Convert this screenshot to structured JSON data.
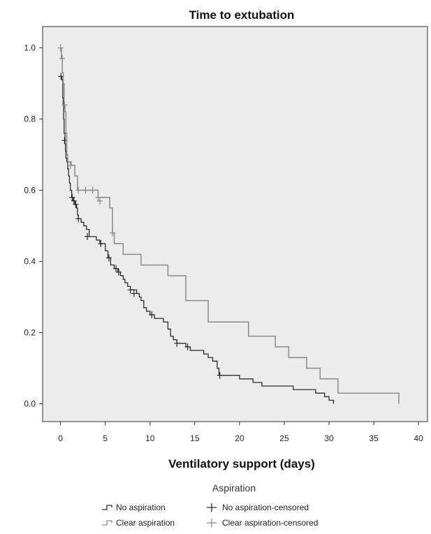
{
  "chart_data": {
    "type": "line",
    "title": "Time to extubation",
    "xlabel": "Ventilatory support (days)",
    "ylabel": "",
    "xlim": [
      -2,
      41
    ],
    "ylim": [
      -0.05,
      1.06
    ],
    "x_ticks": [
      0,
      5,
      10,
      15,
      20,
      25,
      30,
      35,
      40
    ],
    "y_ticks": [
      0.0,
      0.2,
      0.4,
      0.6,
      0.8,
      1.0
    ],
    "x_tick_labels": [
      "0",
      "5",
      "10",
      "15",
      "20",
      "25",
      "30",
      "35",
      "40"
    ],
    "y_tick_labels": [
      "0.0",
      "0.2",
      "0.4",
      "0.6",
      "0.8",
      "1.0"
    ],
    "grid": false,
    "plot_background": "#ececec",
    "legend": {
      "title": "Aspiration",
      "placement": "bottom",
      "entries": [
        "No aspiration",
        "No aspiration-censored",
        "Clear aspiration",
        "Clear aspiration-censored"
      ]
    },
    "series": [
      {
        "name": "No aspiration",
        "color": "#2b2b2b",
        "steps": [
          [
            0,
            0.92
          ],
          [
            0.15,
            0.91
          ],
          [
            0.25,
            0.86
          ],
          [
            0.3,
            0.84
          ],
          [
            0.35,
            0.8
          ],
          [
            0.4,
            0.76
          ],
          [
            0.5,
            0.73
          ],
          [
            0.55,
            0.71
          ],
          [
            0.6,
            0.69
          ],
          [
            0.7,
            0.68
          ],
          [
            0.8,
            0.66
          ],
          [
            0.9,
            0.64
          ],
          [
            1.0,
            0.62
          ],
          [
            1.1,
            0.6
          ],
          [
            1.25,
            0.58
          ],
          [
            1.4,
            0.57
          ],
          [
            1.6,
            0.56
          ],
          [
            1.8,
            0.55
          ],
          [
            1.9,
            0.53
          ],
          [
            2.0,
            0.52
          ],
          [
            2.3,
            0.51
          ],
          [
            2.6,
            0.5
          ],
          [
            2.9,
            0.49
          ],
          [
            3.2,
            0.47
          ],
          [
            4.0,
            0.46
          ],
          [
            4.4,
            0.45
          ],
          [
            5.0,
            0.43
          ],
          [
            5.3,
            0.41
          ],
          [
            5.6,
            0.39
          ],
          [
            6.0,
            0.38
          ],
          [
            6.4,
            0.37
          ],
          [
            6.7,
            0.36
          ],
          [
            7.0,
            0.35
          ],
          [
            7.2,
            0.34
          ],
          [
            7.5,
            0.33
          ],
          [
            7.8,
            0.32
          ],
          [
            8.5,
            0.31
          ],
          [
            8.8,
            0.3
          ],
          [
            9.0,
            0.29
          ],
          [
            9.3,
            0.27
          ],
          [
            9.6,
            0.26
          ],
          [
            10.0,
            0.25
          ],
          [
            10.5,
            0.24
          ],
          [
            11.5,
            0.23
          ],
          [
            12.0,
            0.21
          ],
          [
            12.3,
            0.19
          ],
          [
            12.6,
            0.18
          ],
          [
            13.0,
            0.17
          ],
          [
            14.0,
            0.16
          ],
          [
            14.5,
            0.15
          ],
          [
            16.0,
            0.14
          ],
          [
            16.5,
            0.13
          ],
          [
            17.0,
            0.12
          ],
          [
            17.5,
            0.1
          ],
          [
            17.7,
            0.08
          ],
          [
            20.0,
            0.07
          ],
          [
            21.5,
            0.06
          ],
          [
            22.5,
            0.05
          ],
          [
            26.0,
            0.04
          ],
          [
            28.5,
            0.03
          ],
          [
            29.5,
            0.02
          ],
          [
            30.0,
            0.01
          ],
          [
            30.5,
            0.0
          ]
        ],
        "censored": [
          [
            0.05,
            0.92
          ],
          [
            0.45,
            0.74
          ],
          [
            1.3,
            0.58
          ],
          [
            1.5,
            0.57
          ],
          [
            1.7,
            0.56
          ],
          [
            2.0,
            0.52
          ],
          [
            3.0,
            0.47
          ],
          [
            4.5,
            0.45
          ],
          [
            5.4,
            0.41
          ],
          [
            6.2,
            0.38
          ],
          [
            6.5,
            0.37
          ],
          [
            7.8,
            0.32
          ],
          [
            8.2,
            0.31
          ],
          [
            10.2,
            0.25
          ],
          [
            13.0,
            0.17
          ],
          [
            14.2,
            0.16
          ],
          [
            17.8,
            0.08
          ]
        ]
      },
      {
        "name": "Clear aspiration",
        "color": "#8a8a8a",
        "steps": [
          [
            0,
            1.0
          ],
          [
            0.1,
            0.97
          ],
          [
            0.2,
            0.93
          ],
          [
            0.3,
            0.9
          ],
          [
            0.4,
            0.84
          ],
          [
            0.5,
            0.82
          ],
          [
            0.6,
            0.76
          ],
          [
            0.7,
            0.7
          ],
          [
            0.8,
            0.68
          ],
          [
            1.2,
            0.67
          ],
          [
            1.6,
            0.64
          ],
          [
            1.9,
            0.6
          ],
          [
            4.2,
            0.58
          ],
          [
            5.5,
            0.55
          ],
          [
            5.8,
            0.48
          ],
          [
            6.0,
            0.45
          ],
          [
            7.0,
            0.42
          ],
          [
            9.0,
            0.39
          ],
          [
            12.0,
            0.36
          ],
          [
            14.0,
            0.29
          ],
          [
            16.5,
            0.23
          ],
          [
            21.0,
            0.19
          ],
          [
            24.0,
            0.16
          ],
          [
            25.5,
            0.13
          ],
          [
            27.5,
            0.1
          ],
          [
            29.0,
            0.07
          ],
          [
            31.0,
            0.03
          ],
          [
            37.8,
            0.0
          ]
        ],
        "censored": [
          [
            0.0,
            1.0
          ],
          [
            0.2,
            0.97
          ],
          [
            0.45,
            0.84
          ],
          [
            1.1,
            0.67
          ],
          [
            2.0,
            0.6
          ],
          [
            2.8,
            0.6
          ],
          [
            3.6,
            0.6
          ],
          [
            4.2,
            0.58
          ],
          [
            4.4,
            0.57
          ],
          [
            5.8,
            0.48
          ]
        ]
      }
    ]
  }
}
